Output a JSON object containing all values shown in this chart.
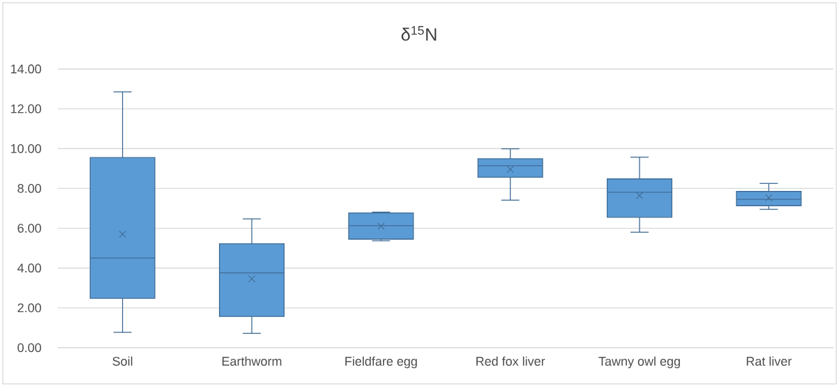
{
  "chart_data": {
    "type": "box",
    "title": "δ$^{15}$N",
    "categories": [
      "Soil",
      "Earthworm",
      "Fieldfare egg",
      "Red fox liver",
      "Tawny owl egg",
      "Rat liver"
    ],
    "boxes": [
      {
        "low": 0.77,
        "q1": 2.48,
        "median": 4.5,
        "q3": 9.55,
        "high": 12.85,
        "mean": 5.7
      },
      {
        "low": 0.72,
        "q1": 1.57,
        "median": 3.76,
        "q3": 5.22,
        "high": 6.47,
        "mean": 3.46
      },
      {
        "low": 5.37,
        "q1": 5.45,
        "median": 6.13,
        "q3": 6.77,
        "high": 6.81,
        "mean": 6.1
      },
      {
        "low": 7.41,
        "q1": 8.56,
        "median": 9.14,
        "q3": 9.49,
        "high": 9.99,
        "mean": 8.96
      },
      {
        "low": 5.8,
        "q1": 6.55,
        "median": 7.81,
        "q3": 8.48,
        "high": 9.57,
        "mean": 7.64
      },
      {
        "low": 6.95,
        "q1": 7.13,
        "median": 7.45,
        "q3": 7.85,
        "high": 8.25,
        "mean": 7.53
      }
    ],
    "color": "#5b9bd5",
    "ylim": [
      0,
      14
    ],
    "yticks": [
      {
        "value": 0,
        "label": "0.00"
      },
      {
        "value": 2,
        "label": "2.00"
      },
      {
        "value": 4,
        "label": "4.00"
      },
      {
        "value": 6,
        "label": "6.00"
      },
      {
        "value": 8,
        "label": "8.00"
      },
      {
        "value": 10,
        "label": "10.00"
      },
      {
        "value": 12,
        "label": "12.00"
      },
      {
        "value": 14,
        "label": "14.00"
      }
    ],
    "grid": "y"
  }
}
